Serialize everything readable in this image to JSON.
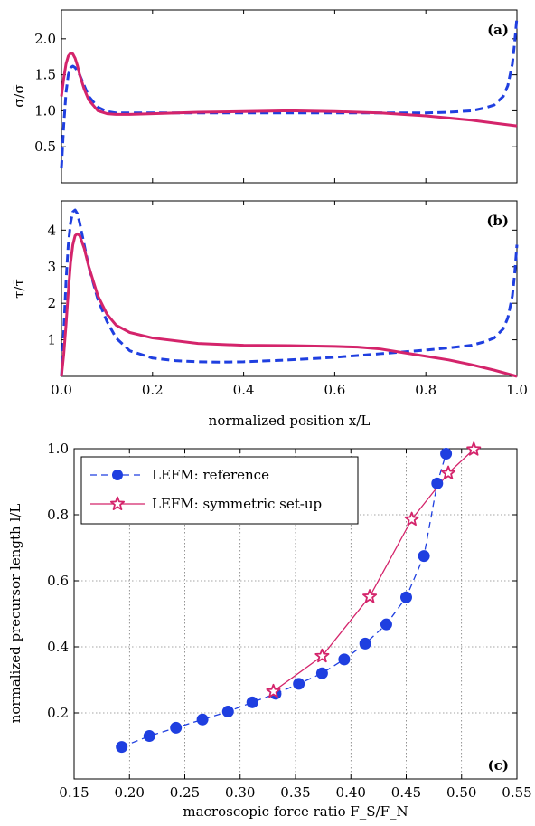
{
  "chart_data": [
    {
      "type": "line",
      "panel_label": "(a)",
      "ylabel": "σ/σ̄",
      "xlim": [
        0.0,
        1.0
      ],
      "ylim": [
        0.0,
        2.4
      ],
      "yticks": [
        "0.5",
        "1.0",
        "1.5",
        "2.0"
      ],
      "grid": false,
      "colors": {
        "reference": "#1f3fe0",
        "symmetric": "#d4246b"
      },
      "series": [
        {
          "key": "reference",
          "style": "dashed",
          "x": [
            0.0,
            0.005,
            0.01,
            0.015,
            0.02,
            0.025,
            0.03,
            0.04,
            0.05,
            0.06,
            0.08,
            0.1,
            0.12,
            0.15,
            0.2,
            0.3,
            0.4,
            0.5,
            0.6,
            0.7,
            0.8,
            0.85,
            0.9,
            0.93,
            0.95,
            0.97,
            0.98,
            0.99,
            0.995,
            1.0
          ],
          "y": [
            0.2,
            0.8,
            1.25,
            1.5,
            1.6,
            1.62,
            1.6,
            1.5,
            1.35,
            1.2,
            1.05,
            0.99,
            0.97,
            0.97,
            0.97,
            0.97,
            0.97,
            0.97,
            0.97,
            0.97,
            0.97,
            0.98,
            1.0,
            1.04,
            1.08,
            1.2,
            1.35,
            1.65,
            1.95,
            2.3
          ]
        },
        {
          "key": "symmetric",
          "style": "solid",
          "x": [
            0.0,
            0.005,
            0.01,
            0.015,
            0.02,
            0.025,
            0.03,
            0.035,
            0.04,
            0.05,
            0.06,
            0.08,
            0.1,
            0.12,
            0.15,
            0.2,
            0.3,
            0.4,
            0.5,
            0.6,
            0.7,
            0.8,
            0.9,
            0.95,
            1.0
          ],
          "y": [
            1.2,
            1.45,
            1.65,
            1.76,
            1.8,
            1.79,
            1.73,
            1.63,
            1.5,
            1.3,
            1.15,
            1.0,
            0.96,
            0.95,
            0.95,
            0.96,
            0.98,
            0.99,
            1.0,
            0.99,
            0.97,
            0.93,
            0.87,
            0.83,
            0.79
          ]
        }
      ]
    },
    {
      "type": "line",
      "panel_label": "(b)",
      "ylabel": "τ/τ̄",
      "xlabel": "normalized position x/L",
      "xlim": [
        0.0,
        1.0
      ],
      "ylim": [
        0.0,
        4.8
      ],
      "xticks": [
        "0.0",
        "0.2",
        "0.4",
        "0.6",
        "0.8",
        "1.0"
      ],
      "yticks": [
        "1",
        "2",
        "3",
        "4"
      ],
      "grid": false,
      "colors": {
        "reference": "#1f3fe0",
        "symmetric": "#d4246b"
      },
      "series": [
        {
          "key": "reference",
          "style": "dashed",
          "x": [
            0.0,
            0.005,
            0.01,
            0.015,
            0.02,
            0.025,
            0.03,
            0.035,
            0.04,
            0.05,
            0.06,
            0.08,
            0.1,
            0.12,
            0.15,
            0.2,
            0.25,
            0.3,
            0.35,
            0.4,
            0.5,
            0.6,
            0.7,
            0.8,
            0.85,
            0.9,
            0.93,
            0.95,
            0.97,
            0.98,
            0.99,
            0.995,
            1.0
          ],
          "y": [
            0.0,
            1.2,
            2.6,
            3.6,
            4.2,
            4.5,
            4.55,
            4.45,
            4.2,
            3.6,
            3.0,
            2.1,
            1.5,
            1.05,
            0.7,
            0.5,
            0.43,
            0.4,
            0.39,
            0.4,
            0.45,
            0.52,
            0.62,
            0.72,
            0.78,
            0.85,
            0.95,
            1.05,
            1.3,
            1.6,
            2.2,
            2.8,
            3.6
          ]
        },
        {
          "key": "symmetric",
          "style": "solid",
          "x": [
            0.0,
            0.005,
            0.01,
            0.015,
            0.02,
            0.025,
            0.03,
            0.035,
            0.04,
            0.05,
            0.06,
            0.08,
            0.1,
            0.12,
            0.15,
            0.2,
            0.3,
            0.4,
            0.5,
            0.6,
            0.65,
            0.7,
            0.75,
            0.8,
            0.85,
            0.9,
            0.95,
            1.0
          ],
          "y": [
            0.0,
            0.6,
            1.4,
            2.3,
            3.1,
            3.6,
            3.85,
            3.9,
            3.85,
            3.5,
            3.0,
            2.2,
            1.7,
            1.4,
            1.2,
            1.05,
            0.9,
            0.85,
            0.84,
            0.82,
            0.8,
            0.75,
            0.65,
            0.55,
            0.45,
            0.32,
            0.17,
            0.0
          ]
        }
      ]
    },
    {
      "type": "line",
      "panel_label": "(c)",
      "xlabel": "macroscopic force ratio F_S/F_N",
      "ylabel": "normalized precursor length l/L",
      "xlim": [
        0.15,
        0.55
      ],
      "ylim": [
        0.0,
        1.0
      ],
      "xticks": [
        "0.15",
        "0.20",
        "0.25",
        "0.30",
        "0.35",
        "0.40",
        "0.45",
        "0.50",
        "0.55"
      ],
      "yticks": [
        "0.2",
        "0.4",
        "0.6",
        "0.8",
        "1.0"
      ],
      "grid": true,
      "legend_position": "top-left",
      "colors": {
        "reference": "#1f3fe0",
        "symmetric": "#d4246b"
      },
      "series": [
        {
          "key": "reference",
          "name": "LEFM: reference",
          "marker": "circle",
          "style": "dashed",
          "x": [
            0.193,
            0.218,
            0.242,
            0.266,
            0.289,
            0.311,
            0.332,
            0.353,
            0.374,
            0.394,
            0.413,
            0.432,
            0.45,
            0.466,
            0.478,
            0.486
          ],
          "y": [
            0.097,
            0.13,
            0.155,
            0.18,
            0.204,
            0.232,
            0.258,
            0.288,
            0.32,
            0.362,
            0.41,
            0.468,
            0.55,
            0.675,
            0.895,
            0.985
          ]
        },
        {
          "key": "symmetric",
          "name": "LEFM: symmetric set-up",
          "marker": "star",
          "style": "solid",
          "x": [
            0.33,
            0.374,
            0.417,
            0.455,
            0.488,
            0.511
          ],
          "y": [
            0.265,
            0.372,
            0.552,
            0.786,
            0.926,
            0.998
          ]
        }
      ]
    }
  ]
}
